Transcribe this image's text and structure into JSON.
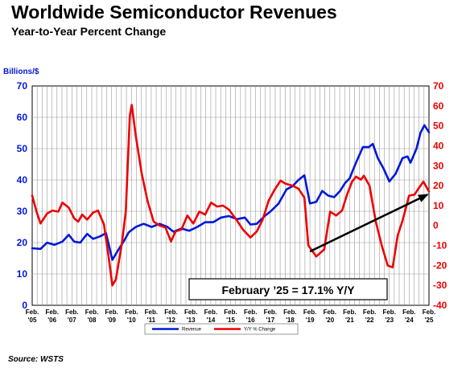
{
  "header": {
    "title": "Worldwide Semiconductor Revenues",
    "subtitle": "Year-to-Year Percent Change",
    "source": "Source: WSTS"
  },
  "colors": {
    "revenue": "#0018d8",
    "yoy": "#ee0000",
    "grid": "#999999"
  },
  "chart_data": {
    "type": "line",
    "title": "Worldwide Semiconductor Revenues",
    "subtitle": "Year-to-Year Percent Change",
    "ylabel_left": "Billions/$",
    "y_left_ticks": [
      "0",
      "10",
      "20",
      "30",
      "40",
      "50",
      "60",
      "70"
    ],
    "y_right_ticks": [
      "-40",
      "-30",
      "-20",
      "-10",
      "0",
      "10",
      "20",
      "30",
      "40",
      "50",
      "60",
      "70"
    ],
    "ylim_left": [
      0,
      70
    ],
    "ylim_right": [
      -40,
      70
    ],
    "x_ticks": [
      {
        "line1": "Feb.",
        "line2": "'05",
        "x": 2005.08
      },
      {
        "line1": "Feb.",
        "line2": "'06",
        "x": 2006.08
      },
      {
        "line1": "Feb.",
        "line2": "'07",
        "x": 2007.08
      },
      {
        "line1": "Feb.",
        "line2": "'08",
        "x": 2008.08
      },
      {
        "line1": "Feb.",
        "line2": "'09",
        "x": 2009.08
      },
      {
        "line1": "Feb.",
        "line2": "'10",
        "x": 2010.08
      },
      {
        "line1": "Feb.",
        "line2": "'11",
        "x": 2011.08
      },
      {
        "line1": "Feb.",
        "line2": "'12",
        "x": 2012.08
      },
      {
        "line1": "Feb.",
        "line2": "'13",
        "x": 2013.08
      },
      {
        "line1": "Feb.",
        "line2": "'14",
        "x": 2014.08
      },
      {
        "line1": "Feb.",
        "line2": "'15",
        "x": 2015.08
      },
      {
        "line1": "Feb.",
        "line2": "'16",
        "x": 2016.08
      },
      {
        "line1": "Feb.",
        "line2": "'17",
        "x": 2017.08
      },
      {
        "line1": "Feb.",
        "line2": "'18",
        "x": 2018.08
      },
      {
        "line1": "Feb.",
        "line2": "'19",
        "x": 2019.08
      },
      {
        "line1": "Feb.",
        "line2": "'20",
        "x": 2020.08
      },
      {
        "line1": "Feb.",
        "line2": "'21",
        "x": 2021.08
      },
      {
        "line1": "Feb.",
        "line2": "'22",
        "x": 2022.08
      },
      {
        "line1": "Feb.",
        "line2": "'23",
        "x": 2023.08
      },
      {
        "line1": "Feb.",
        "line2": "'24",
        "x": 2024.08
      },
      {
        "line1": "Feb.",
        "line2": "'25",
        "x": 2025.08
      }
    ],
    "xlim": [
      2005.08,
      2025.08
    ],
    "grid": true,
    "legend_position": "bottom-center",
    "series": [
      {
        "name": "Revenue",
        "axis": "left",
        "points": [
          [
            2005.08,
            18.2
          ],
          [
            2005.5,
            18.0
          ],
          [
            2005.83,
            20.0
          ],
          [
            2006.2,
            19.3
          ],
          [
            2006.6,
            20.3
          ],
          [
            2006.92,
            22.5
          ],
          [
            2007.2,
            20.3
          ],
          [
            2007.5,
            20.0
          ],
          [
            2007.85,
            22.8
          ],
          [
            2008.15,
            21.2
          ],
          [
            2008.5,
            22.0
          ],
          [
            2008.8,
            23.0
          ],
          [
            2009.0,
            17.8
          ],
          [
            2009.12,
            14.5
          ],
          [
            2009.4,
            17.5
          ],
          [
            2009.7,
            20.5
          ],
          [
            2009.95,
            23.3
          ],
          [
            2010.3,
            25.0
          ],
          [
            2010.7,
            26.0
          ],
          [
            2011.1,
            25.0
          ],
          [
            2011.5,
            26.0
          ],
          [
            2011.9,
            25.0
          ],
          [
            2012.2,
            23.5
          ],
          [
            2012.6,
            24.5
          ],
          [
            2013.0,
            23.8
          ],
          [
            2013.4,
            25.0
          ],
          [
            2013.8,
            26.5
          ],
          [
            2014.2,
            26.5
          ],
          [
            2014.6,
            28.0
          ],
          [
            2015.0,
            28.5
          ],
          [
            2015.4,
            27.5
          ],
          [
            2015.8,
            28.0
          ],
          [
            2016.08,
            25.8
          ],
          [
            2016.4,
            26.0
          ],
          [
            2016.8,
            28.5
          ],
          [
            2017.1,
            30.0
          ],
          [
            2017.5,
            32.5
          ],
          [
            2017.9,
            37.0
          ],
          [
            2018.2,
            38.0
          ],
          [
            2018.5,
            40.0
          ],
          [
            2018.8,
            41.5
          ],
          [
            2019.08,
            32.5
          ],
          [
            2019.4,
            33.0
          ],
          [
            2019.7,
            36.5
          ],
          [
            2020.0,
            35.0
          ],
          [
            2020.3,
            34.5
          ],
          [
            2020.6,
            36.5
          ],
          [
            2020.85,
            39.0
          ],
          [
            2021.08,
            40.5
          ],
          [
            2021.4,
            45.5
          ],
          [
            2021.75,
            50.5
          ],
          [
            2022.05,
            50.5
          ],
          [
            2022.25,
            51.5
          ],
          [
            2022.5,
            47.0
          ],
          [
            2022.8,
            43.5
          ],
          [
            2023.08,
            39.5
          ],
          [
            2023.4,
            42.0
          ],
          [
            2023.75,
            47.0
          ],
          [
            2024.0,
            47.5
          ],
          [
            2024.15,
            45.5
          ],
          [
            2024.45,
            50.0
          ],
          [
            2024.65,
            55.0
          ],
          [
            2024.85,
            57.5
          ],
          [
            2025.08,
            55.2
          ]
        ]
      },
      {
        "name": "Y/Y % Change",
        "axis": "right",
        "points": [
          [
            2005.08,
            15.0
          ],
          [
            2005.3,
            7.0
          ],
          [
            2005.5,
            1.0
          ],
          [
            2005.83,
            6.0
          ],
          [
            2006.1,
            7.5
          ],
          [
            2006.4,
            7.0
          ],
          [
            2006.6,
            11.5
          ],
          [
            2006.92,
            9.0
          ],
          [
            2007.2,
            3.5
          ],
          [
            2007.4,
            2.0
          ],
          [
            2007.6,
            5.5
          ],
          [
            2007.85,
            3.0
          ],
          [
            2008.15,
            6.5
          ],
          [
            2008.4,
            7.5
          ],
          [
            2008.7,
            0.5
          ],
          [
            2008.95,
            -17.0
          ],
          [
            2009.12,
            -30.0
          ],
          [
            2009.3,
            -27.0
          ],
          [
            2009.6,
            -9.0
          ],
          [
            2009.8,
            7.0
          ],
          [
            2010.0,
            55.0
          ],
          [
            2010.1,
            60.5
          ],
          [
            2010.3,
            45.0
          ],
          [
            2010.6,
            26.0
          ],
          [
            2010.9,
            12.0
          ],
          [
            2011.2,
            2.0
          ],
          [
            2011.5,
            0.0
          ],
          [
            2011.8,
            -1.0
          ],
          [
            2012.08,
            -8.0
          ],
          [
            2012.3,
            -3.0
          ],
          [
            2012.6,
            -2.0
          ],
          [
            2012.9,
            5.0
          ],
          [
            2013.2,
            1.0
          ],
          [
            2013.5,
            7.0
          ],
          [
            2013.8,
            5.5
          ],
          [
            2014.1,
            11.5
          ],
          [
            2014.4,
            9.5
          ],
          [
            2014.7,
            10.0
          ],
          [
            2015.0,
            8.0
          ],
          [
            2015.4,
            2.5
          ],
          [
            2015.7,
            -2.0
          ],
          [
            2016.08,
            -6.0
          ],
          [
            2016.4,
            -3.0
          ],
          [
            2016.7,
            3.0
          ],
          [
            2017.0,
            12.5
          ],
          [
            2017.3,
            18.0
          ],
          [
            2017.6,
            22.5
          ],
          [
            2017.85,
            21.0
          ],
          [
            2018.2,
            20.0
          ],
          [
            2018.5,
            18.5
          ],
          [
            2018.8,
            14.0
          ],
          [
            2019.0,
            -10.0
          ],
          [
            2019.4,
            -15.5
          ],
          [
            2019.8,
            -12.0
          ],
          [
            2020.1,
            7.0
          ],
          [
            2020.4,
            5.0
          ],
          [
            2020.7,
            7.5
          ],
          [
            2020.95,
            15.5
          ],
          [
            2021.2,
            22.0
          ],
          [
            2021.4,
            24.5
          ],
          [
            2021.65,
            23.0
          ],
          [
            2021.8,
            25.0
          ],
          [
            2022.08,
            20.0
          ],
          [
            2022.4,
            2.0
          ],
          [
            2022.7,
            -10.0
          ],
          [
            2023.0,
            -20.0
          ],
          [
            2023.25,
            -21.0
          ],
          [
            2023.5,
            -5.0
          ],
          [
            2023.75,
            2.5
          ],
          [
            2024.08,
            15.0
          ],
          [
            2024.35,
            15.5
          ],
          [
            2024.55,
            18.5
          ],
          [
            2024.8,
            22.0
          ],
          [
            2025.08,
            17.1
          ]
        ]
      }
    ],
    "trend_arrow": {
      "from": [
        2019.08,
        -13.0
      ],
      "to": [
        2025.0,
        15.5
      ],
      "axis": "right"
    },
    "annotation": "February ’25 = 17.1% Y/Y"
  }
}
